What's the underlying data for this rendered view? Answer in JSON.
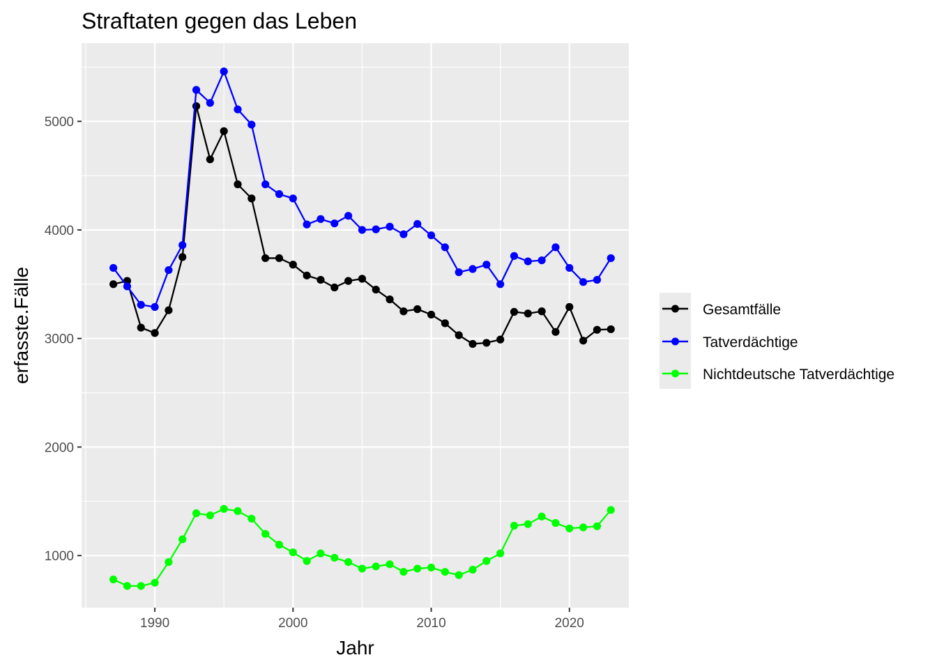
{
  "chart_data": {
    "type": "line",
    "title": "Straftaten gegen das Leben",
    "xlabel": "Jahr",
    "ylabel": "erfasste.Fälle",
    "x": [
      1987,
      1988,
      1989,
      1990,
      1991,
      1992,
      1993,
      1994,
      1995,
      1996,
      1997,
      1998,
      1999,
      2000,
      2001,
      2002,
      2003,
      2004,
      2005,
      2006,
      2007,
      2008,
      2009,
      2010,
      2011,
      2012,
      2013,
      2014,
      2015,
      2016,
      2017,
      2018,
      2019,
      2020,
      2021,
      2022,
      2023
    ],
    "xlim": [
      1984.7,
      2024.3
    ],
    "ylim": [
      520,
      5720
    ],
    "x_ticks": [
      1990,
      2000,
      2010,
      2020
    ],
    "y_ticks": [
      1000,
      2000,
      3000,
      4000,
      5000
    ],
    "grid": true,
    "legend_position": "right",
    "series": [
      {
        "name": "Gesamtfälle",
        "color": "#000000",
        "values": [
          3500,
          3530,
          3100,
          3050,
          3260,
          3750,
          5140,
          4650,
          4910,
          4420,
          4290,
          3740,
          3740,
          3680,
          3580,
          3540,
          3470,
          3530,
          3550,
          3450,
          3360,
          3250,
          3270,
          3220,
          3140,
          3030,
          2950,
          2960,
          2990,
          3245,
          3230,
          3250,
          3060,
          3290,
          2980,
          3080,
          3085
        ]
      },
      {
        "name": "Tatverdächtige",
        "color": "#0000ff",
        "values": [
          3650,
          3480,
          3310,
          3290,
          3630,
          3860,
          5290,
          5170,
          5460,
          5110,
          4970,
          4420,
          4330,
          4290,
          4050,
          4100,
          4060,
          4130,
          4000,
          4005,
          4030,
          3960,
          4055,
          3950,
          3840,
          3610,
          3640,
          3680,
          3500,
          3760,
          3710,
          3720,
          3840,
          3650,
          3520,
          3540,
          3740
        ]
      },
      {
        "name": "Nichtdeutsche Tatverdächtige",
        "color": "#00ff00",
        "values": [
          780,
          720,
          720,
          750,
          940,
          1150,
          1390,
          1370,
          1430,
          1410,
          1340,
          1200,
          1100,
          1030,
          950,
          1020,
          980,
          940,
          880,
          900,
          920,
          850,
          880,
          890,
          850,
          820,
          870,
          950,
          1020,
          1275,
          1290,
          1360,
          1300,
          1250,
          1260,
          1270,
          1420
        ]
      }
    ]
  }
}
